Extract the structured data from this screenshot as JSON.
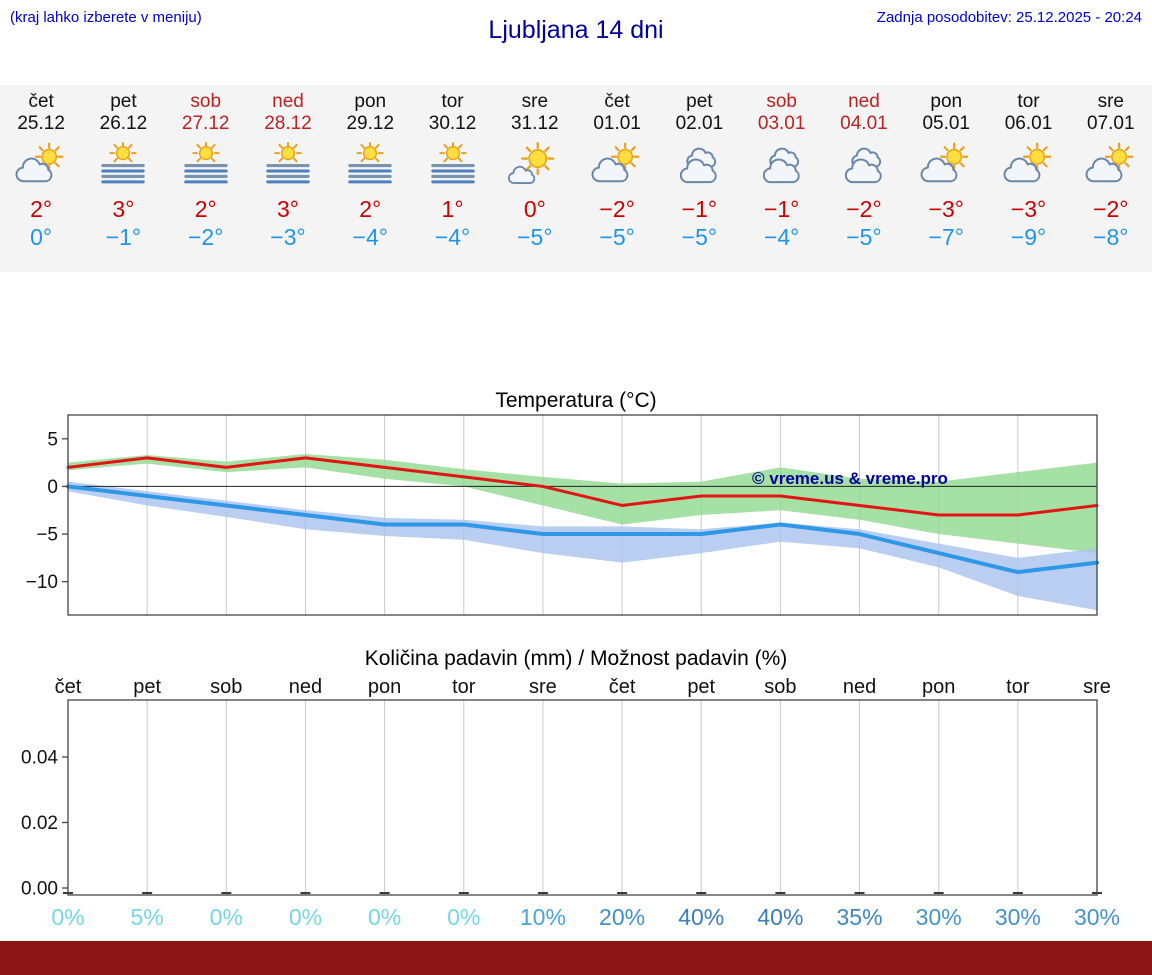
{
  "header": {
    "menu_hint": "(kraj lahko izberete v meniju)",
    "title": "Ljubljana 14 dni",
    "last_update": "Zadnja posodobitev: 25.12.2025 - 20:24"
  },
  "colors": {
    "accent_blue": "#0000cc",
    "title_blue": "#000099",
    "temp_high_red": "#cc0000",
    "temp_low_blue": "#2094e8",
    "weekend_red": "#bb2222",
    "strip_bg": "#f4f4f4",
    "footer_bar": "#8e1515",
    "watermark": "#000099"
  },
  "forecast": {
    "days": [
      {
        "name": "čet",
        "date": "25.12",
        "icon": "partly-cloudy",
        "high": "2°",
        "low": "0°",
        "weekend": false
      },
      {
        "name": "pet",
        "date": "26.12",
        "icon": "fog-sun",
        "high": "3°",
        "low": "−1°",
        "weekend": false
      },
      {
        "name": "sob",
        "date": "27.12",
        "icon": "fog-sun",
        "high": "2°",
        "low": "−2°",
        "weekend": true
      },
      {
        "name": "ned",
        "date": "28.12",
        "icon": "fog-sun",
        "high": "3°",
        "low": "−3°",
        "weekend": true
      },
      {
        "name": "pon",
        "date": "29.12",
        "icon": "fog-sun",
        "high": "2°",
        "low": "−4°",
        "weekend": false
      },
      {
        "name": "tor",
        "date": "30.12",
        "icon": "fog-sun",
        "high": "1°",
        "low": "−4°",
        "weekend": false
      },
      {
        "name": "sre",
        "date": "31.12",
        "icon": "mostly-sunny",
        "high": "0°",
        "low": "−5°",
        "weekend": false
      },
      {
        "name": "čet",
        "date": "01.01",
        "icon": "partly-cloudy",
        "high": "−2°",
        "low": "−5°",
        "weekend": false
      },
      {
        "name": "pet",
        "date": "02.01",
        "icon": "cloudy",
        "high": "−1°",
        "low": "−5°",
        "weekend": false
      },
      {
        "name": "sob",
        "date": "03.01",
        "icon": "cloudy",
        "high": "−1°",
        "low": "−4°",
        "weekend": true
      },
      {
        "name": "ned",
        "date": "04.01",
        "icon": "cloudy",
        "high": "−2°",
        "low": "−5°",
        "weekend": true
      },
      {
        "name": "pon",
        "date": "05.01",
        "icon": "partly-cloudy",
        "high": "−3°",
        "low": "−7°",
        "weekend": false
      },
      {
        "name": "tor",
        "date": "06.01",
        "icon": "partly-cloudy",
        "high": "−3°",
        "low": "−9°",
        "weekend": false
      },
      {
        "name": "sre",
        "date": "07.01",
        "icon": "partly-cloudy",
        "high": "−2°",
        "low": "−8°",
        "weekend": false
      }
    ]
  },
  "chart_data": [
    {
      "type": "line",
      "title": "Temperatura (°C)",
      "x_labels": [
        "čet",
        "pet",
        "sob",
        "ned",
        "pon",
        "tor",
        "sre",
        "čet",
        "pet",
        "sob",
        "ned",
        "pon",
        "tor",
        "sre"
      ],
      "y_ticks": [
        "5",
        "0",
        "−5",
        "−10"
      ],
      "ylim": [
        -13.5,
        7.5
      ],
      "grid": true,
      "watermark": "© vreme.us & vreme.pro",
      "series": [
        {
          "name": "max-temp",
          "color": "#e41414",
          "values": [
            2,
            3,
            2,
            3,
            2,
            1,
            0,
            -2,
            -1,
            -1,
            -2,
            -3,
            -3,
            -2
          ]
        },
        {
          "name": "min-temp",
          "color": "#2e97e8",
          "values": [
            0,
            -1,
            -2,
            -3,
            -4,
            -4,
            -5,
            -5,
            -5,
            -4,
            -5,
            -7,
            -9,
            -8
          ]
        }
      ],
      "bands": [
        {
          "name": "max-temp-range",
          "color": "#8ed88e",
          "opacity": 0.8,
          "upper": [
            2.5,
            3.3,
            2.6,
            3.4,
            2.8,
            1.8,
            1.0,
            0.3,
            0.5,
            2.0,
            0.8,
            0.5,
            1.5,
            2.5
          ],
          "lower": [
            1.7,
            2.4,
            1.5,
            2.0,
            0.8,
            0.0,
            -2.0,
            -4.0,
            -3.0,
            -2.5,
            -3.5,
            -5.0,
            -6.0,
            -7.0
          ]
        },
        {
          "name": "min-temp-range",
          "color": "#a8c2ee",
          "opacity": 0.8,
          "upper": [
            0.5,
            -0.5,
            -1.5,
            -2.5,
            -3.3,
            -3.5,
            -4.2,
            -4.2,
            -4.5,
            -3.8,
            -4.5,
            -6.0,
            -7.5,
            -6.5
          ],
          "lower": [
            -0.5,
            -2.0,
            -3.2,
            -4.5,
            -5.2,
            -5.6,
            -7.0,
            -8.0,
            -7.0,
            -5.8,
            -6.5,
            -8.5,
            -11.5,
            -13.0
          ]
        }
      ]
    },
    {
      "type": "bar",
      "title": "Količina padavin (mm) / Možnost padavin (%)",
      "x_labels": [
        "čet",
        "pet",
        "sob",
        "ned",
        "pon",
        "tor",
        "sre",
        "čet",
        "pet",
        "sob",
        "ned",
        "pon",
        "tor",
        "sre"
      ],
      "y_ticks": [
        "0.00",
        "0.02",
        "0.04"
      ],
      "values": [
        0,
        0,
        0,
        0,
        0,
        0,
        0,
        0,
        0,
        0,
        0,
        0,
        0,
        0
      ],
      "probabilities": [
        {
          "label": "0%",
          "color": "#76d6e6"
        },
        {
          "label": "5%",
          "color": "#76d6e6"
        },
        {
          "label": "0%",
          "color": "#76d6e6"
        },
        {
          "label": "0%",
          "color": "#76d6e6"
        },
        {
          "label": "0%",
          "color": "#76d6e6"
        },
        {
          "label": "0%",
          "color": "#76d6e6"
        },
        {
          "label": "10%",
          "color": "#4aa4d8"
        },
        {
          "label": "20%",
          "color": "#418fc9"
        },
        {
          "label": "40%",
          "color": "#3a7dba"
        },
        {
          "label": "40%",
          "color": "#3a7dba"
        },
        {
          "label": "35%",
          "color": "#3f88c2"
        },
        {
          "label": "30%",
          "color": "#4493c8"
        },
        {
          "label": "30%",
          "color": "#4493c8"
        },
        {
          "label": "30%",
          "color": "#4493c8"
        }
      ]
    }
  ]
}
